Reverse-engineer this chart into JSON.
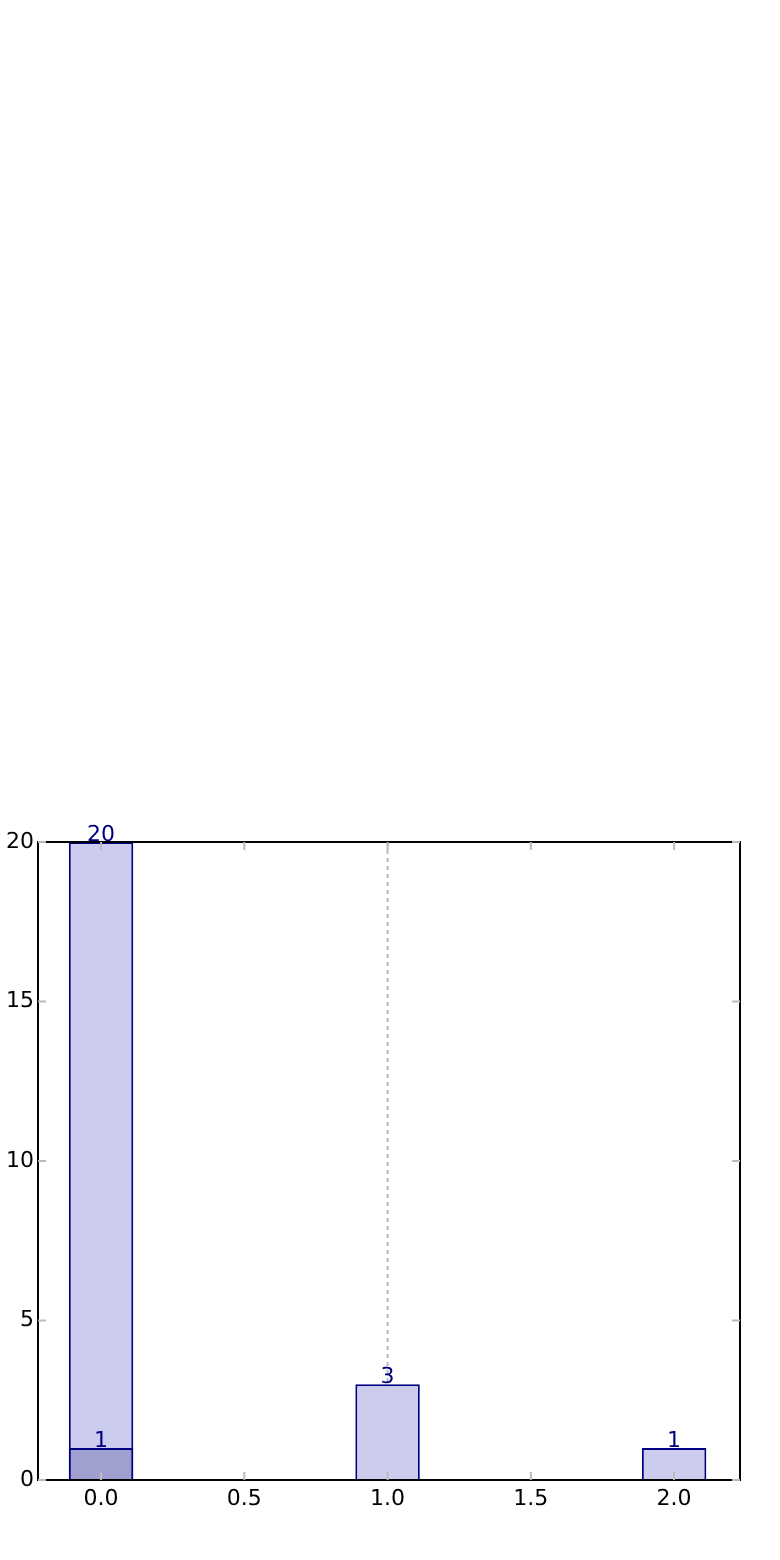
{
  "chart_data": {
    "type": "bar",
    "x": [
      0,
      1,
      2
    ],
    "series": [
      {
        "color": "#ccccee",
        "values": [
          20,
          3,
          1
        ]
      },
      {
        "color": "#a0a0d0",
        "values": [
          1,
          null,
          null
        ]
      }
    ],
    "xlim": [
      -0.22,
      2.23
    ],
    "xticks": [
      {
        "value": 0,
        "label": "0.0"
      },
      {
        "value": 0.5,
        "label": "0.5"
      },
      {
        "value": 1,
        "label": "1.0"
      },
      {
        "value": 1.5,
        "label": "1.5"
      },
      {
        "value": 2,
        "label": "2.0"
      }
    ],
    "ylim": [
      0,
      20
    ],
    "yticks": [
      0,
      5,
      10,
      15,
      20
    ],
    "ref_lines": [
      {
        "axis": "x",
        "value": 1,
        "color": "#bbbbbb",
        "line_style": "dotted"
      }
    ],
    "data_labels": true,
    "grid": false,
    "legend": false
  }
}
